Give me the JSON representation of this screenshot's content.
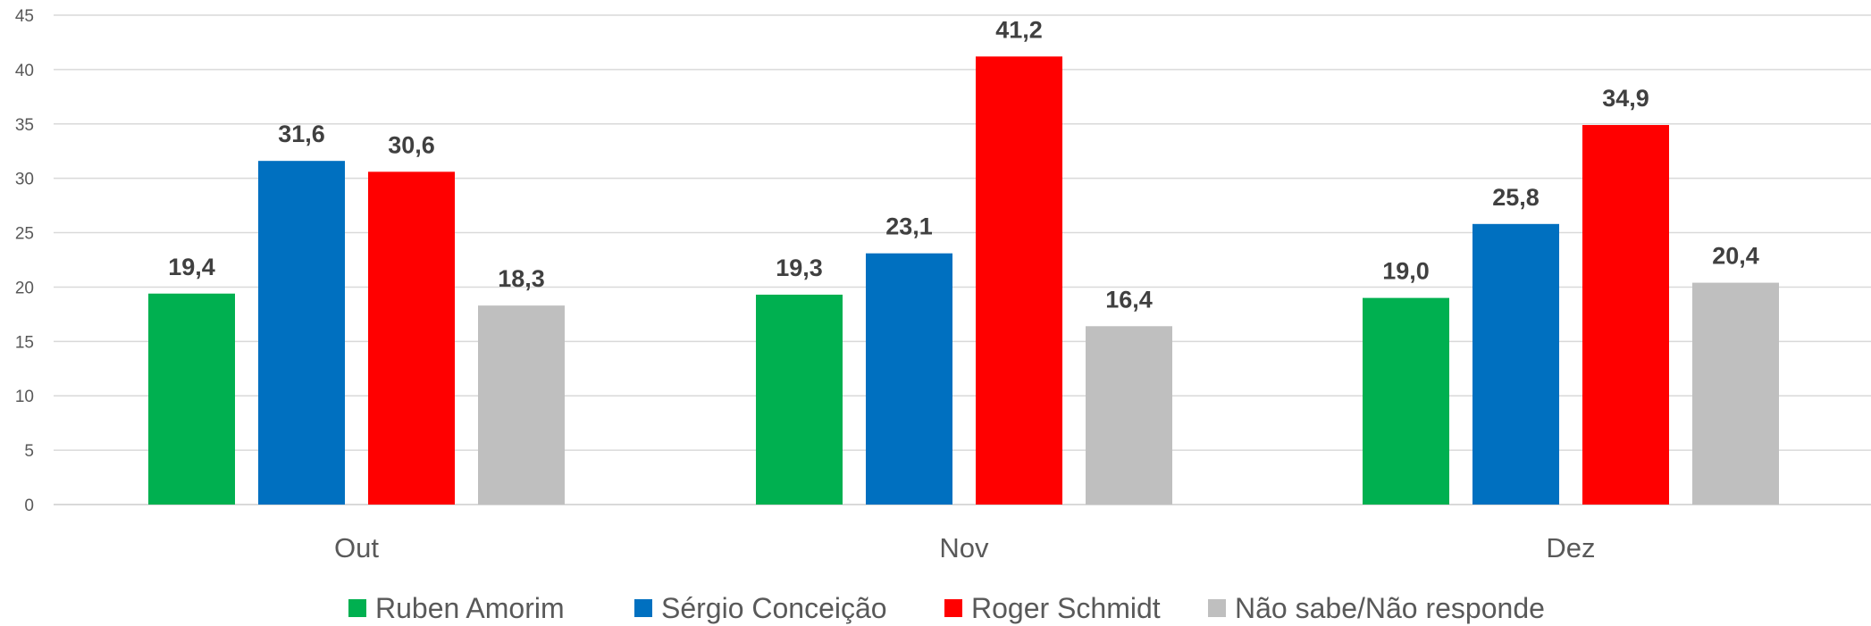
{
  "chart_data": {
    "type": "bar",
    "categories": [
      "Out",
      "Nov",
      "Dez"
    ],
    "series": [
      {
        "name": "Ruben Amorim",
        "color": "#00b050",
        "values": [
          19.4,
          19.3,
          19.0
        ],
        "labels": [
          "19,4",
          "19,3",
          "19,0"
        ]
      },
      {
        "name": "Sérgio Conceição",
        "color": "#0070c0",
        "values": [
          31.6,
          23.1,
          25.8
        ],
        "labels": [
          "31,6",
          "23,1",
          "25,8"
        ]
      },
      {
        "name": "Roger Schmidt",
        "color": "#ff0000",
        "values": [
          30.6,
          41.2,
          34.9
        ],
        "labels": [
          "30,6",
          "41,2",
          "34,9"
        ]
      },
      {
        "name": "Não sabe/Não responde",
        "color": "#bfbfbf",
        "values": [
          18.3,
          16.4,
          20.4
        ],
        "labels": [
          "18,3",
          "16,4",
          "20,4"
        ]
      }
    ],
    "ylim": [
      0,
      45
    ],
    "yticks": [
      0,
      5,
      10,
      15,
      20,
      25,
      30,
      35,
      40,
      45
    ],
    "grid": true,
    "legend_position": "bottom",
    "title": "",
    "xlabel": "",
    "ylabel": ""
  }
}
